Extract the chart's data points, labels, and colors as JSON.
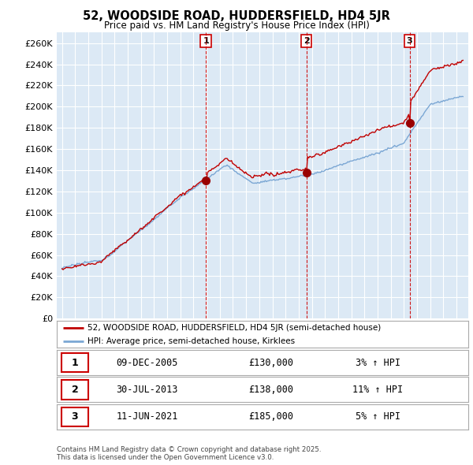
{
  "title": "52, WOODSIDE ROAD, HUDDERSFIELD, HD4 5JR",
  "subtitle": "Price paid vs. HM Land Registry's House Price Index (HPI)",
  "background_color": "#ffffff",
  "plot_bg_color": "#dce9f5",
  "grid_color": "#ffffff",
  "sale_color": "#c00000",
  "hpi_color": "#7ba7d4",
  "ylim": [
    0,
    270000
  ],
  "yticks": [
    0,
    20000,
    40000,
    60000,
    80000,
    100000,
    120000,
    140000,
    160000,
    180000,
    200000,
    220000,
    240000,
    260000
  ],
  "ytick_labels": [
    "£0",
    "£20K",
    "£40K",
    "£60K",
    "£80K",
    "£100K",
    "£120K",
    "£140K",
    "£160K",
    "£180K",
    "£200K",
    "£220K",
    "£240K",
    "£260K"
  ],
  "sale_dates_num": [
    2005.94,
    2013.58,
    2021.44
  ],
  "sale_prices": [
    130000,
    138000,
    185000
  ],
  "sale_labels": [
    "1",
    "2",
    "3"
  ],
  "vline_color": "#cc0000",
  "legend_items": [
    {
      "label": "52, WOODSIDE ROAD, HUDDERSFIELD, HD4 5JR (semi-detached house)",
      "color": "#c00000"
    },
    {
      "label": "HPI: Average price, semi-detached house, Kirklees",
      "color": "#7ba7d4"
    }
  ],
  "table_rows": [
    {
      "num": "1",
      "date": "09-DEC-2005",
      "price": "£130,000",
      "hpi": "3% ↑ HPI"
    },
    {
      "num": "2",
      "date": "30-JUL-2013",
      "price": "£138,000",
      "hpi": "11% ↑ HPI"
    },
    {
      "num": "3",
      "date": "11-JUN-2021",
      "price": "£185,000",
      "hpi": "5% ↑ HPI"
    }
  ],
  "footer": "Contains HM Land Registry data © Crown copyright and database right 2025.\nThis data is licensed under the Open Government Licence v3.0."
}
